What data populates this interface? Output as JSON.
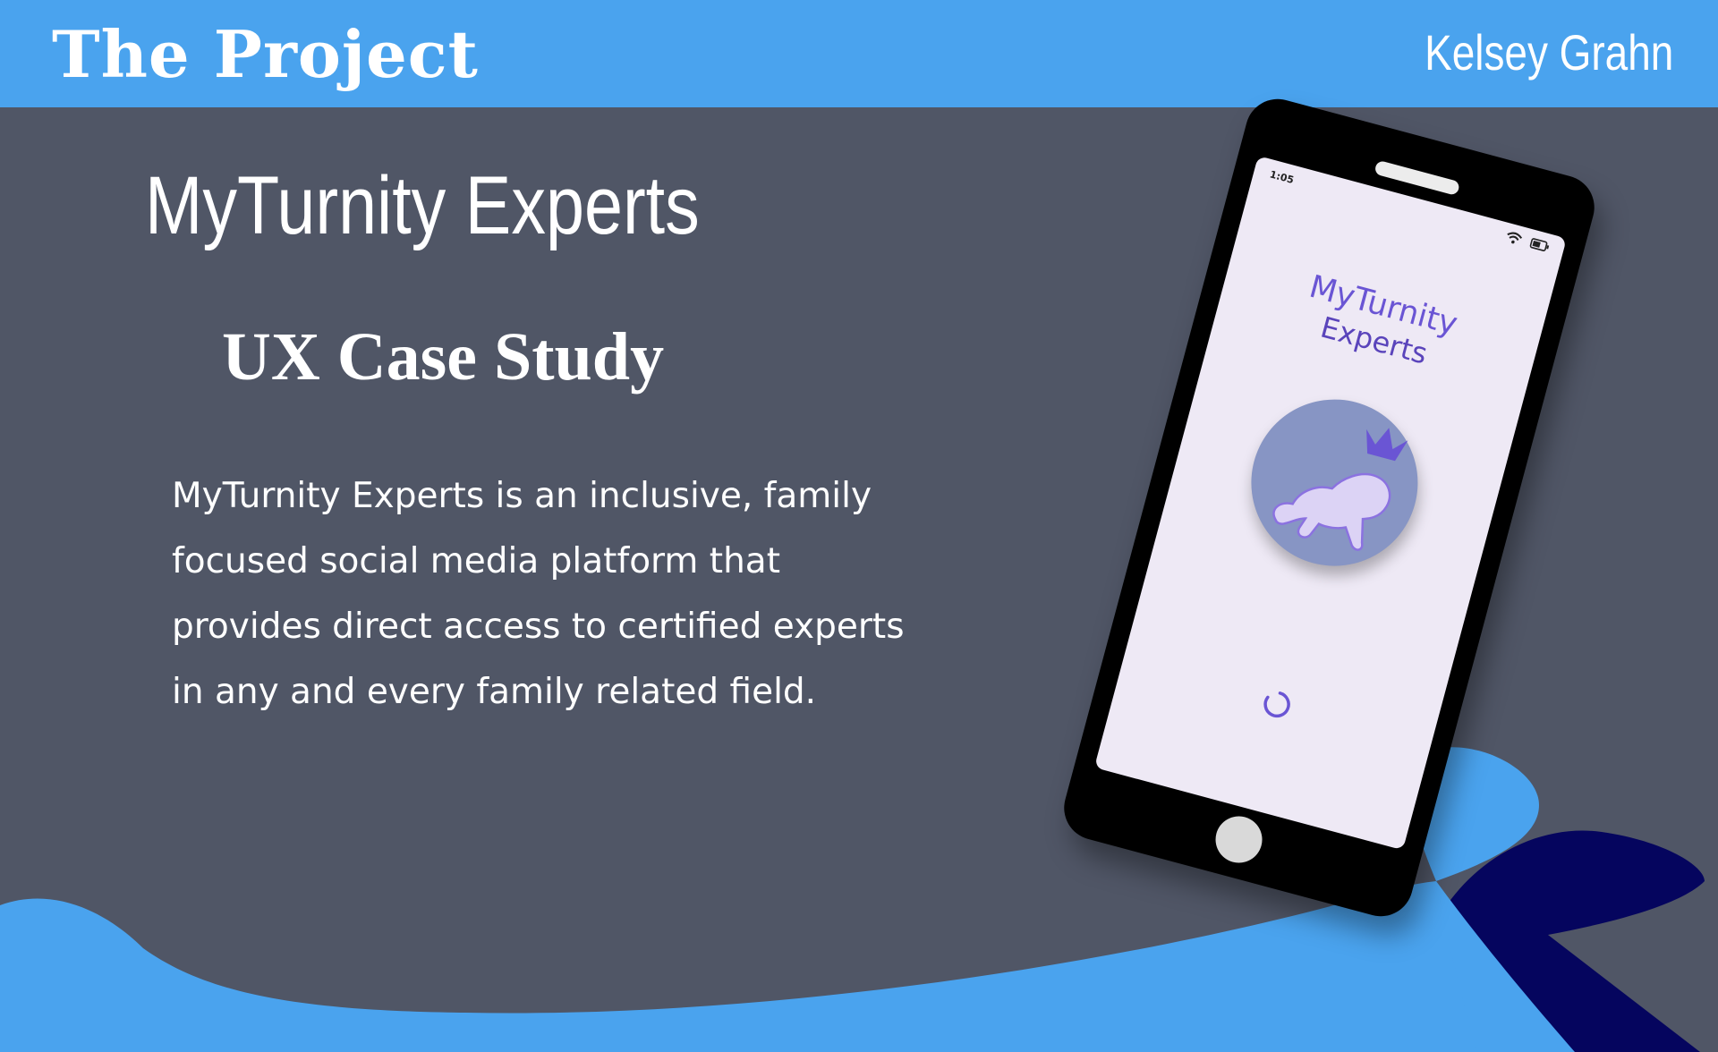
{
  "header": {
    "section_title": "The Project",
    "author": "Kelsey Grahn"
  },
  "main": {
    "app_title": "MyTurnity Experts",
    "subtitle": "UX Case Study",
    "description": "MyTurnity Experts is an inclusive, family focused social media platform that provides direct access to certified experts in any and every family related field."
  },
  "phone": {
    "status_time": "1:05",
    "app_name_line1": "MyTurnity",
    "app_name_line2": "Experts",
    "icons": [
      "wifi-icon",
      "battery-icon",
      "crawling-baby-crown-logo",
      "loading-spinner-icon"
    ]
  },
  "colors": {
    "header_bar": "#4aa3ee",
    "background": "#505666",
    "wave_light": "#4aa3ee",
    "wave_dark": "#05055e",
    "phone_screen": "#eee9f5",
    "brand_purple": "#6a55d4",
    "logo_circle": "#8795c4"
  }
}
